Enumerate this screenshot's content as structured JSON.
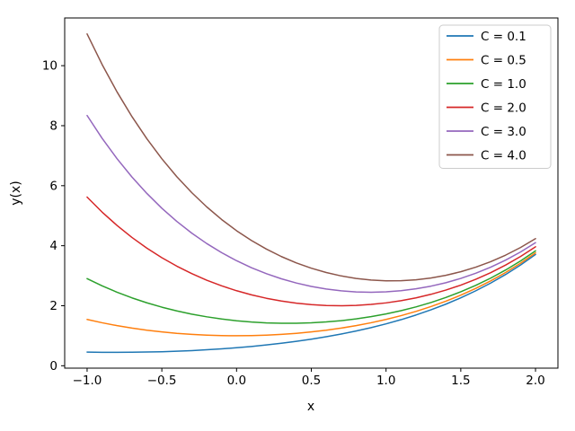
{
  "figure": {
    "background": "#ffffff",
    "spine_color": "#000000",
    "tick_color": "#000000"
  },
  "chart_data": {
    "type": "line",
    "title": "",
    "xlabel": "x",
    "ylabel": "y(x)",
    "xlim": [
      -1.15,
      2.15
    ],
    "ylim": [
      -0.08,
      11.59
    ],
    "grid": false,
    "x_ticks": [
      -1.0,
      -0.5,
      0.0,
      0.5,
      1.0,
      1.5,
      2.0
    ],
    "x_tick_labels": [
      "−1.0",
      "−0.5",
      "0.0",
      "0.5",
      "1.0",
      "1.5",
      "2.0"
    ],
    "y_ticks": [
      0,
      2,
      4,
      6,
      8,
      10
    ],
    "y_tick_labels": [
      "0",
      "2",
      "4",
      "6",
      "8",
      "10"
    ],
    "legend": {
      "position": "upper right",
      "frame_color": "#cccccc",
      "frame_fill": "#ffffff"
    },
    "x": [
      -1.0,
      -0.9,
      -0.8,
      -0.7,
      -0.6,
      -0.5,
      -0.4,
      -0.3,
      -0.2,
      -0.1,
      0.0,
      0.1,
      0.2,
      0.3,
      0.4,
      0.5,
      0.6,
      0.7,
      0.8,
      0.9,
      1.0,
      1.1,
      1.2,
      1.3,
      1.4,
      1.5,
      1.6,
      1.7,
      1.8,
      1.9,
      2.0
    ],
    "series": [
      {
        "name": "C = 0.1",
        "color": "#1f77b4",
        "values": [
          0.456,
          0.449,
          0.447,
          0.45,
          0.457,
          0.468,
          0.484,
          0.505,
          0.532,
          0.563,
          0.6,
          0.643,
          0.693,
          0.749,
          0.813,
          0.885,
          0.966,
          1.057,
          1.158,
          1.27,
          1.396,
          1.535,
          1.69,
          1.862,
          2.052,
          2.263,
          2.497,
          2.755,
          3.041,
          3.358,
          3.708
        ]
      },
      {
        "name": "C = 0.5",
        "color": "#ff7f0e",
        "values": [
          1.543,
          1.433,
          1.337,
          1.255,
          1.185,
          1.128,
          1.081,
          1.045,
          1.02,
          1.005,
          1.0,
          1.005,
          1.02,
          1.045,
          1.081,
          1.128,
          1.185,
          1.255,
          1.337,
          1.433,
          1.543,
          1.669,
          1.811,
          1.971,
          2.151,
          2.352,
          2.577,
          2.828,
          3.107,
          3.418,
          3.762
        ]
      },
      {
        "name": "C = 1.0",
        "color": "#2ca02c",
        "values": [
          2.902,
          2.663,
          2.45,
          2.262,
          2.097,
          1.952,
          1.827,
          1.72,
          1.631,
          1.558,
          1.5,
          1.457,
          1.429,
          1.416,
          1.416,
          1.431,
          1.46,
          1.503,
          1.562,
          1.636,
          1.727,
          1.835,
          1.961,
          2.107,
          2.274,
          2.464,
          2.678,
          2.92,
          3.19,
          3.493,
          3.83
        ]
      },
      {
        "name": "C = 2.0",
        "color": "#d62728",
        "values": [
          5.621,
          5.122,
          4.676,
          4.276,
          3.919,
          3.601,
          3.319,
          3.07,
          2.852,
          2.663,
          2.5,
          2.362,
          2.248,
          2.157,
          2.087,
          2.037,
          2.009,
          2.0,
          2.011,
          2.043,
          2.095,
          2.168,
          2.262,
          2.38,
          2.521,
          2.687,
          2.88,
          3.102,
          3.355,
          3.642,
          3.965
        ]
      },
      {
        "name": "C = 3.0",
        "color": "#9467bd",
        "values": [
          8.339,
          7.582,
          6.901,
          6.29,
          5.741,
          5.249,
          4.811,
          4.42,
          4.074,
          3.768,
          3.5,
          3.267,
          3.067,
          2.897,
          2.757,
          2.644,
          2.557,
          2.497,
          2.461,
          2.45,
          2.463,
          2.501,
          2.564,
          2.652,
          2.767,
          2.91,
          3.082,
          3.285,
          3.521,
          3.792,
          4.101
        ]
      },
      {
        "name": "C = 4.0",
        "color": "#8c564b",
        "values": [
          11.057,
          10.042,
          9.127,
          8.303,
          7.563,
          6.898,
          6.302,
          5.77,
          5.295,
          4.873,
          4.5,
          4.172,
          3.886,
          3.638,
          3.427,
          3.25,
          3.106,
          2.993,
          2.91,
          2.856,
          2.831,
          2.834,
          2.865,
          2.925,
          3.014,
          3.133,
          3.284,
          3.468,
          3.686,
          3.941,
          4.236
        ]
      }
    ]
  }
}
